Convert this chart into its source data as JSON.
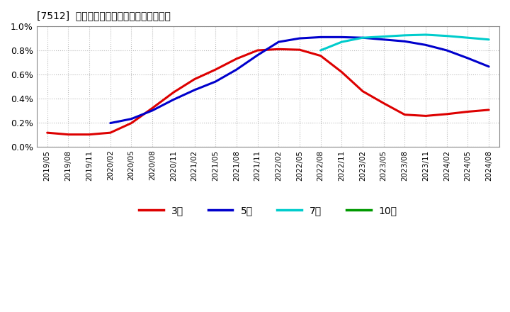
{
  "title": "[7512]  経常利益マージンの標準偏差の推移",
  "bg_color": "#ffffff",
  "plot_bg_color": "#ffffff",
  "grid_color": "#bbbbbb",
  "ylim": [
    0.0,
    0.01
  ],
  "yticks": [
    0.0,
    0.002,
    0.004,
    0.006,
    0.008,
    0.01
  ],
  "ytick_labels": [
    "0.0%",
    "0.2%",
    "0.4%",
    "0.6%",
    "0.8%",
    "1.0%"
  ],
  "x_labels": [
    "2019/05",
    "2019/08",
    "2019/11",
    "2020/02",
    "2020/05",
    "2020/08",
    "2020/11",
    "2021/02",
    "2021/05",
    "2021/08",
    "2021/11",
    "2022/02",
    "2022/05",
    "2022/08",
    "2022/11",
    "2023/02",
    "2023/05",
    "2023/08",
    "2023/11",
    "2024/02",
    "2024/05",
    "2024/08"
  ],
  "series": {
    "3year": {
      "color": "#dd0000",
      "label": "3年",
      "values": [
        0.00115,
        0.001,
        0.001,
        0.00115,
        0.00195,
        0.0032,
        0.0045,
        0.0056,
        0.0064,
        0.0073,
        0.008,
        0.0081,
        0.00805,
        0.00755,
        0.0062,
        0.0046,
        0.0036,
        0.00265,
        0.00255,
        0.0027,
        0.0029,
        0.00305
      ]
    },
    "5year": {
      "color": "#0000cc",
      "label": "5年",
      "values": [
        null,
        null,
        null,
        0.00195,
        0.0023,
        0.003,
        0.0039,
        0.0047,
        0.0054,
        0.0064,
        0.0076,
        0.0087,
        0.009,
        0.0091,
        0.0091,
        0.00905,
        0.0089,
        0.00875,
        0.00845,
        0.008,
        0.00735,
        0.00665
      ]
    },
    "7year": {
      "color": "#00cccc",
      "label": "7年",
      "values": [
        null,
        null,
        null,
        null,
        null,
        null,
        null,
        null,
        null,
        null,
        null,
        null,
        null,
        0.008,
        0.0087,
        0.00905,
        0.00915,
        0.00925,
        0.0093,
        0.0092,
        0.00905,
        0.0089
      ]
    },
    "10year": {
      "color": "#009900",
      "label": "10年",
      "values": [
        null,
        null,
        null,
        null,
        null,
        null,
        null,
        null,
        null,
        null,
        null,
        null,
        null,
        null,
        null,
        null,
        null,
        null,
        null,
        null,
        null,
        null
      ]
    }
  },
  "legend_entries": [
    "3年",
    "5年",
    "7年",
    "10年"
  ],
  "legend_colors": [
    "#dd0000",
    "#0000cc",
    "#00cccc",
    "#009900"
  ]
}
